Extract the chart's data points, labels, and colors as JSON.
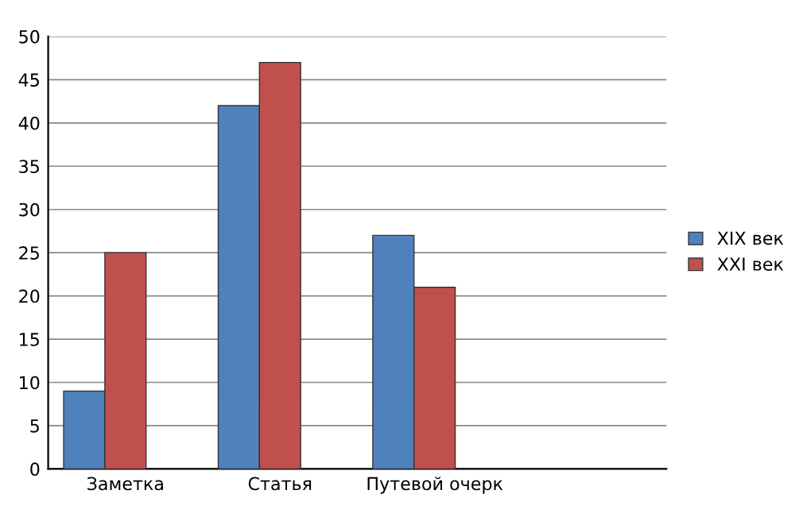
{
  "chart_data": {
    "type": "bar",
    "categories": [
      "Заметка",
      "Статья",
      "Путевой очерк",
      null
    ],
    "series": [
      {
        "name": "XIX век",
        "color": "#4f81bd",
        "values": [
          9,
          42,
          27,
          null
        ]
      },
      {
        "name": "XXI век",
        "color": "#c0504d",
        "values": [
          25,
          47,
          21,
          null
        ]
      }
    ],
    "ylim": [
      0,
      50
    ],
    "yticks": [
      0,
      5,
      10,
      15,
      20,
      25,
      30,
      35,
      40,
      45,
      50
    ],
    "grid": "y",
    "legend": "right"
  }
}
